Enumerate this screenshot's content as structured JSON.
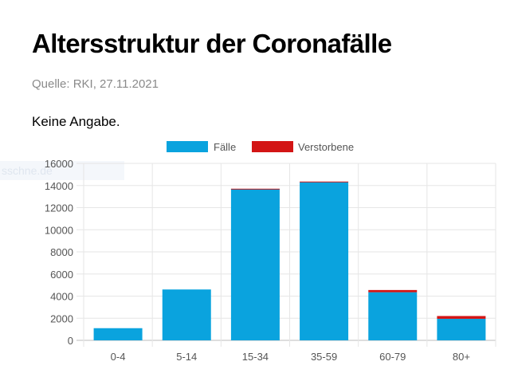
{
  "header": {
    "title": "Altersstruktur der Coronafälle",
    "source": "Quelle: RKI, 27.11.2021",
    "note": "Keine Angabe.",
    "ghost_text": "sschne.de"
  },
  "colors": {
    "faelle": "#0aa3de",
    "verstorbene": "#d31515",
    "grid": "#e6e6e6",
    "axis_text": "#555555"
  },
  "chart_data": {
    "type": "bar",
    "stacked": true,
    "categories": [
      "0-4",
      "5-14",
      "15-34",
      "35-59",
      "60-79",
      "80+"
    ],
    "series": [
      {
        "name": "Fälle",
        "values": [
          1100,
          4600,
          13700,
          14300,
          4350,
          1950
        ]
      },
      {
        "name": "Verstorbene",
        "values": [
          0,
          0,
          10,
          60,
          200,
          250
        ]
      }
    ],
    "yticks": [
      "0",
      "2000",
      "4000",
      "6000",
      "8000",
      "10000",
      "12000",
      "14000",
      "16000"
    ],
    "ylim": [
      0,
      16000
    ],
    "title": "",
    "xlabel": "",
    "ylabel": "",
    "grid": true,
    "legend": "top-center"
  }
}
